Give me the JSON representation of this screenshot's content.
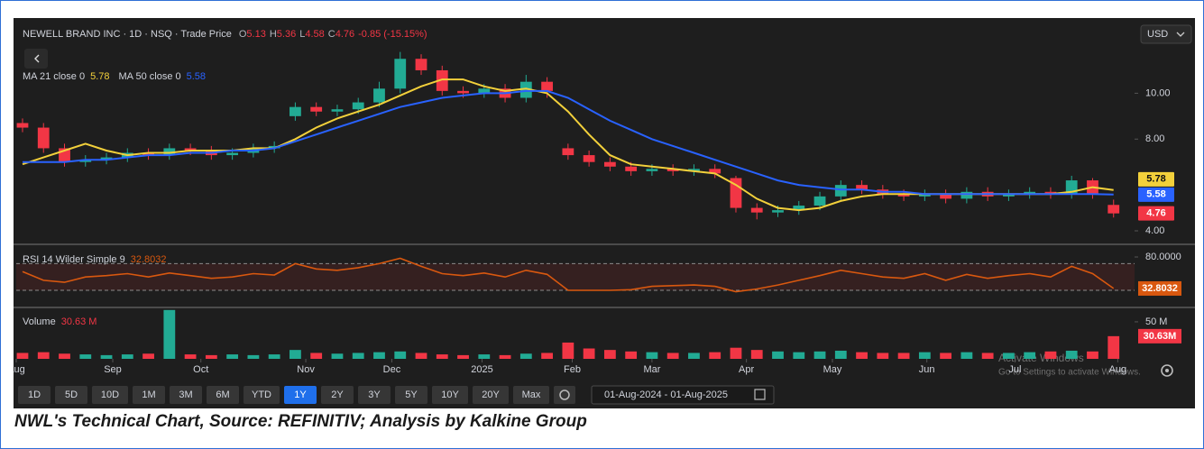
{
  "chart_data": [
    {
      "type": "candlestick",
      "title": "NEWELL BRAND INC · 1D · NSQ · Trade Price",
      "ohlc_labels": [
        "O",
        "H",
        "L",
        "C"
      ],
      "change": "-0.85 (-15.15%)",
      "up_color": "#22ab94",
      "down_color": "#f23645",
      "open": [
        8.7,
        8.5,
        7.6,
        7.0,
        7.1,
        7.2,
        7.4,
        7.3,
        7.6,
        7.5,
        7.3,
        7.4,
        7.6,
        9.0,
        9.4,
        9.2,
        9.3,
        9.6,
        10.2,
        11.5,
        11.0,
        10.1,
        10.0,
        10.2,
        9.8,
        10.5,
        7.6,
        7.3,
        7.0,
        6.8,
        6.6,
        6.7,
        6.6,
        6.7,
        6.3,
        5.0,
        4.8,
        4.9,
        5.1,
        5.5,
        6.0,
        5.8,
        5.6,
        5.5,
        5.6,
        5.4,
        5.7,
        5.5,
        5.6,
        5.7,
        5.6,
        6.2,
        5.13
      ],
      "high": [
        8.9,
        8.7,
        7.8,
        7.3,
        7.4,
        7.6,
        7.6,
        7.8,
        7.8,
        7.7,
        7.6,
        7.8,
        7.9,
        9.6,
        9.6,
        9.5,
        9.8,
        10.5,
        11.8,
        11.7,
        11.2,
        10.3,
        10.4,
        10.4,
        10.8,
        10.7,
        7.8,
        7.5,
        7.2,
        7.0,
        6.9,
        6.9,
        6.9,
        6.9,
        6.4,
        5.2,
        5.1,
        5.3,
        5.7,
        6.2,
        6.2,
        6.0,
        5.8,
        5.8,
        5.8,
        5.9,
        5.9,
        5.8,
        5.9,
        5.9,
        6.4,
        6.3,
        5.36
      ],
      "low": [
        8.3,
        7.4,
        6.8,
        6.8,
        6.9,
        7.0,
        7.1,
        7.1,
        7.3,
        7.1,
        7.1,
        7.2,
        7.4,
        8.8,
        9.0,
        9.0,
        9.1,
        9.4,
        10.0,
        10.8,
        9.9,
        9.8,
        9.8,
        9.6,
        9.6,
        9.8,
        7.1,
        6.8,
        6.6,
        6.4,
        6.4,
        6.4,
        6.4,
        6.3,
        4.8,
        4.5,
        4.6,
        4.7,
        4.9,
        5.3,
        5.6,
        5.4,
        5.3,
        5.3,
        5.2,
        5.2,
        5.3,
        5.3,
        5.4,
        5.4,
        5.4,
        5.4,
        4.58
      ],
      "close": [
        8.5,
        7.6,
        7.0,
        7.1,
        7.2,
        7.4,
        7.3,
        7.6,
        7.5,
        7.3,
        7.4,
        7.6,
        7.7,
        9.4,
        9.2,
        9.3,
        9.6,
        10.2,
        11.5,
        11.0,
        10.1,
        10.0,
        10.2,
        9.8,
        10.5,
        10.1,
        7.3,
        7.0,
        6.8,
        6.6,
        6.7,
        6.6,
        6.7,
        6.5,
        5.0,
        4.8,
        4.9,
        5.1,
        5.5,
        6.0,
        5.8,
        5.6,
        5.5,
        5.6,
        5.4,
        5.7,
        5.5,
        5.6,
        5.7,
        5.6,
        6.2,
        5.6,
        4.76
      ],
      "series": [
        {
          "name": "MA 21 close 0",
          "color": "#f2d03b",
          "values": [
            6.9,
            7.2,
            7.5,
            7.8,
            7.5,
            7.3,
            7.4,
            7.4,
            7.5,
            7.5,
            7.5,
            7.6,
            7.6,
            8.0,
            8.5,
            8.9,
            9.2,
            9.5,
            9.9,
            10.3,
            10.6,
            10.6,
            10.3,
            10.1,
            10.2,
            10.0,
            9.2,
            8.2,
            7.3,
            6.9,
            6.8,
            6.7,
            6.6,
            6.5,
            6.0,
            5.4,
            5.0,
            4.9,
            5.0,
            5.3,
            5.5,
            5.6,
            5.6,
            5.6,
            5.6,
            5.6,
            5.6,
            5.6,
            5.6,
            5.6,
            5.7,
            5.9,
            5.78
          ]
        },
        {
          "name": "MA 50 close 0",
          "color": "#2962ff",
          "values": [
            7.0,
            7.0,
            7.0,
            7.1,
            7.1,
            7.2,
            7.3,
            7.3,
            7.4,
            7.4,
            7.5,
            7.5,
            7.6,
            7.9,
            8.2,
            8.5,
            8.8,
            9.1,
            9.4,
            9.6,
            9.8,
            9.9,
            10.0,
            10.0,
            10.1,
            10.1,
            9.8,
            9.3,
            8.8,
            8.4,
            8.0,
            7.7,
            7.4,
            7.1,
            6.8,
            6.5,
            6.2,
            6.0,
            5.9,
            5.8,
            5.8,
            5.7,
            5.7,
            5.6,
            5.6,
            5.6,
            5.6,
            5.6,
            5.6,
            5.6,
            5.6,
            5.6,
            5.58
          ]
        }
      ],
      "ylim": [
        3.45,
        13.2
      ],
      "yticks": [
        {
          "value": 10,
          "label": "10.00"
        },
        {
          "value": 8,
          "label": "8.00"
        },
        {
          "value": 4,
          "label": "4.00"
        }
      ],
      "xlim": [
        -0.3,
        53
      ],
      "xticks": [
        {
          "value": -0.3,
          "label": "Aug"
        },
        {
          "value": 4.3,
          "label": "Sep"
        },
        {
          "value": 8.5,
          "label": "Oct"
        },
        {
          "value": 13.5,
          "label": "Nov"
        },
        {
          "value": 17.6,
          "label": "Dec"
        },
        {
          "value": 21.9,
          "label": "2025"
        },
        {
          "value": 26.2,
          "label": "Feb"
        },
        {
          "value": 30.0,
          "label": "Mar"
        },
        {
          "value": 34.5,
          "label": "Apr"
        },
        {
          "value": 38.6,
          "label": "May"
        },
        {
          "value": 43.1,
          "label": "Jun"
        },
        {
          "value": 47.3,
          "label": "Jul"
        },
        {
          "value": 52.2,
          "label": "Aug"
        }
      ]
    },
    {
      "type": "line",
      "title": "RSI 14 Wilder Simple 9",
      "series": [
        {
          "name": "RSI 14 Wilder Simple 9",
          "color": "#d9580f",
          "values": [
            58,
            45,
            42,
            50,
            52,
            55,
            50,
            56,
            52,
            48,
            50,
            55,
            53,
            70,
            62,
            60,
            64,
            70,
            78,
            66,
            55,
            52,
            56,
            50,
            60,
            54,
            30,
            30,
            30,
            31,
            36,
            37,
            38,
            36,
            28,
            32,
            38,
            45,
            52,
            60,
            55,
            50,
            48,
            55,
            45,
            54,
            48,
            52,
            55,
            50,
            66,
            55,
            32.8032
          ]
        }
      ],
      "bands": [
        30,
        70
      ],
      "ylim": [
        5.7,
        97.6
      ],
      "yticks": [
        {
          "value": 80,
          "label": "80.0000"
        }
      ]
    },
    {
      "type": "bar",
      "title": "Volume",
      "values": [
        8,
        9,
        7,
        6,
        5,
        6,
        7,
        66,
        6,
        5,
        6,
        5,
        6,
        12,
        8,
        7,
        8,
        9,
        10,
        8,
        6,
        5,
        6,
        5,
        7,
        8,
        22,
        14,
        12,
        10,
        9,
        8,
        8,
        9,
        15,
        12,
        10,
        9,
        10,
        11,
        9,
        8,
        8,
        9,
        8,
        9,
        8,
        8,
        9,
        10,
        11,
        10,
        30.63
      ],
      "legend_value": "30.63 M",
      "last_label": "30.63M",
      "ylim": [
        0,
        67
      ],
      "yticks": [
        {
          "value": 50,
          "label": "50 M"
        }
      ]
    }
  ],
  "currency": "USD",
  "toolbar": {
    "ranges": [
      "1D",
      "5D",
      "10D",
      "1M",
      "3M",
      "6M",
      "YTD",
      "1Y",
      "2Y",
      "3Y",
      "5Y",
      "10Y",
      "20Y",
      "Max"
    ],
    "active": "1Y",
    "date_range": "01-Aug-2024 - 01-Aug-2025"
  },
  "watermark": [
    "Activate Windows",
    "Go to Settings to activate Windows."
  ],
  "caption": "NWL's Technical Chart, Source: REFINITIV; Analysis by Kalkine Group"
}
